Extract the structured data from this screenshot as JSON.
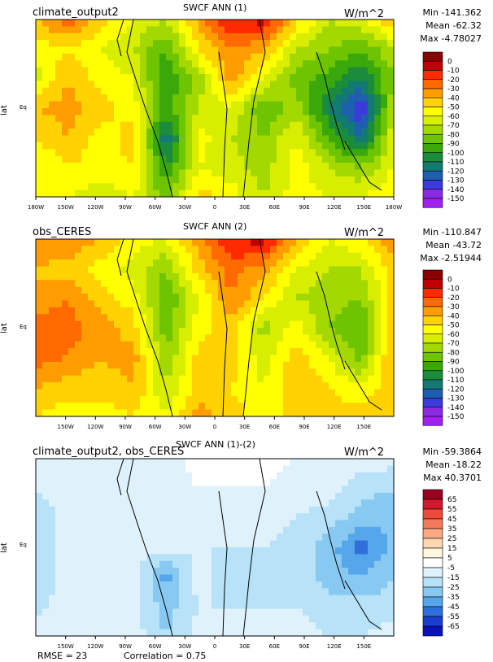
{
  "chart_data": [
    {
      "type": "heatmap",
      "title": "SWCF ANN (1)",
      "case_name": "climate_output2",
      "units": "W/m^2",
      "ylabel": "lat",
      "y_ticks": [
        "Eq"
      ],
      "x_ticks": [
        "180W",
        "150W",
        "120W",
        "90W",
        "60W",
        "30W",
        "0",
        "30E",
        "60E",
        "90E",
        "120E",
        "150E",
        "180W"
      ],
      "stats": {
        "min": "Min -141.362",
        "mean": "Mean -62.32",
        "max": "Max -4.78027"
      },
      "colorbar": {
        "levels": [
          "0",
          "-10",
          "-20",
          "-30",
          "-40",
          "-50",
          "-60",
          "-70",
          "-80",
          "-90",
          "-100",
          "-110",
          "-120",
          "-130",
          "-140",
          "-150"
        ],
        "colors": [
          "#8b0000",
          "#c00000",
          "#ff2a00",
          "#ff6a00",
          "#ff9d00",
          "#ffd200",
          "#ffff00",
          "#d7ee00",
          "#a3d900",
          "#6fc400",
          "#3aa80b",
          "#1a8c3c",
          "#127a73",
          "#1f5fb0",
          "#3b3bd9",
          "#8a2be2",
          "#a020f0"
        ]
      },
      "field": [
        [
          -40,
          -25,
          -45,
          -60,
          -70,
          -35,
          -10,
          -5,
          -45,
          -70,
          -60,
          -40
        ],
        [
          -55,
          -50,
          -60,
          -70,
          -90,
          -50,
          -30,
          -40,
          -70,
          -80,
          -90,
          -70
        ],
        [
          -65,
          -40,
          -55,
          -60,
          -100,
          -75,
          -35,
          -60,
          -85,
          -95,
          -110,
          -80
        ],
        [
          -40,
          -35,
          -45,
          -55,
          -95,
          -70,
          -60,
          -90,
          -75,
          -110,
          -140,
          -70
        ],
        [
          -50,
          -40,
          -55,
          -45,
          -120,
          -55,
          -70,
          -80,
          -60,
          -90,
          -120,
          -60
        ],
        [
          -60,
          -50,
          -55,
          -50,
          -100,
          -60,
          -65,
          -75,
          -55,
          -70,
          -80,
          -60
        ],
        [
          -55,
          -60,
          -65,
          -60,
          -85,
          -45,
          -55,
          -70,
          -55,
          -60,
          -60,
          -50
        ]
      ]
    },
    {
      "type": "heatmap",
      "title": "SWCF ANN (2)",
      "case_name": "obs_CERES",
      "units": "W/m^2",
      "ylabel": "lat",
      "y_ticks": [
        "Eq"
      ],
      "x_ticks": [
        "150W",
        "120W",
        "90W",
        "60W",
        "30W",
        "0",
        "30E",
        "60E",
        "90E",
        "120E",
        "150E"
      ],
      "stats": {
        "min": "Min -110.847",
        "mean": "Mean -43.72",
        "max": "Max -2.51944"
      },
      "colorbar": {
        "levels": [
          "0",
          "-10",
          "-20",
          "-30",
          "-40",
          "-50",
          "-60",
          "-70",
          "-80",
          "-90",
          "-100",
          "-110",
          "-120",
          "-130",
          "-140",
          "-150"
        ],
        "colors": [
          "#8b0000",
          "#c00000",
          "#ff2a00",
          "#ff6a00",
          "#ff9d00",
          "#ffd200",
          "#ffff00",
          "#d7ee00",
          "#a3d900",
          "#6fc400",
          "#3aa80b",
          "#1a8c3c",
          "#127a73",
          "#1f5fb0",
          "#3b3bd9",
          "#8a2be2",
          "#a020f0"
        ]
      },
      "field": [
        [
          -30,
          -30,
          -40,
          -55,
          -60,
          -35,
          -10,
          -5,
          -40,
          -60,
          -50,
          -30
        ],
        [
          -40,
          -45,
          -55,
          -65,
          -80,
          -45,
          -25,
          -35,
          -60,
          -70,
          -70,
          -45
        ],
        [
          -40,
          -30,
          -45,
          -55,
          -90,
          -60,
          -30,
          -50,
          -70,
          -75,
          -80,
          -45
        ],
        [
          -20,
          -25,
          -35,
          -45,
          -85,
          -55,
          -45,
          -75,
          -55,
          -80,
          -90,
          -40
        ],
        [
          -25,
          -30,
          -40,
          -35,
          -80,
          -45,
          -45,
          -65,
          -45,
          -60,
          -85,
          -35
        ],
        [
          -40,
          -45,
          -45,
          -40,
          -70,
          -45,
          -50,
          -60,
          -40,
          -50,
          -60,
          -40
        ],
        [
          -50,
          -55,
          -55,
          -50,
          -60,
          -35,
          -45,
          -55,
          -45,
          -45,
          -45,
          -40
        ]
      ]
    },
    {
      "type": "heatmap",
      "title": "SWCF ANN (1)-(2)",
      "case_name": "climate_output2, obs_CERES",
      "units": "W/m^2",
      "ylabel": "lat",
      "y_ticks": [
        "Eq"
      ],
      "x_ticks": [
        "150W",
        "120W",
        "90W",
        "60W",
        "30W",
        "0",
        "30E",
        "60E",
        "90E",
        "120E",
        "150E"
      ],
      "stats": {
        "min": "Min -59.3864",
        "mean": "Mean -18.22",
        "max": "Max 40.3701"
      },
      "colorbar": {
        "levels": [
          "65",
          "55",
          "45",
          "35",
          "25",
          "15",
          "5",
          "-5",
          "-15",
          "-25",
          "-35",
          "-45",
          "-55",
          "-65"
        ],
        "colors": [
          "#9b0020",
          "#d01a2b",
          "#ec4b3c",
          "#f57a5a",
          "#fbaa86",
          "#fdd7b1",
          "#fff6df",
          "#ffffff",
          "#dff2fb",
          "#b7e2f7",
          "#88c9f2",
          "#55a6ea",
          "#2f6fdb",
          "#1a3fcf",
          "#0b12b5"
        ]
      },
      "field": [
        [
          -10,
          -5,
          -10,
          -10,
          -10,
          0,
          0,
          0,
          -5,
          -10,
          -10,
          -10
        ],
        [
          -15,
          -5,
          -5,
          -5,
          -10,
          -5,
          -5,
          -5,
          -10,
          -10,
          -20,
          -25
        ],
        [
          -25,
          -10,
          -10,
          -5,
          -10,
          -15,
          -5,
          -10,
          -15,
          -20,
          -30,
          -35
        ],
        [
          -20,
          -10,
          -10,
          -10,
          -10,
          -15,
          -15,
          -15,
          -20,
          -30,
          -50,
          -30
        ],
        [
          -25,
          -10,
          -15,
          -10,
          -40,
          -10,
          -25,
          -15,
          -15,
          -30,
          -35,
          -25
        ],
        [
          -20,
          -5,
          -10,
          -10,
          -30,
          -15,
          -15,
          -15,
          -15,
          -20,
          -20,
          -20
        ],
        [
          -5,
          -5,
          -10,
          -10,
          -25,
          -10,
          -10,
          -15,
          -10,
          -15,
          -15,
          -10
        ]
      ]
    }
  ],
  "footer": {
    "rmse": "RMSE = 23",
    "correlation": "Correlation = 0.75"
  }
}
